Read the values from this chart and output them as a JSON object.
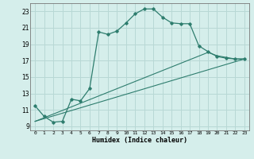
{
  "xlabel": "Humidex (Indice chaleur)",
  "ylabel": "",
  "xlim": [
    -0.5,
    23.5
  ],
  "ylim": [
    8.5,
    24.0
  ],
  "yticks": [
    9,
    11,
    13,
    15,
    17,
    19,
    21,
    23
  ],
  "xticks": [
    0,
    1,
    2,
    3,
    4,
    5,
    6,
    7,
    8,
    9,
    10,
    11,
    12,
    13,
    14,
    15,
    16,
    17,
    18,
    19,
    20,
    21,
    22,
    23
  ],
  "bg_color": "#d5eeeb",
  "grid_color": "#b8d8d5",
  "line_color": "#2e7d6e",
  "line1_x": [
    0,
    1,
    2,
    3,
    4,
    5,
    6,
    7,
    8,
    9,
    10,
    11,
    12,
    13,
    14,
    15,
    16,
    17,
    18,
    19,
    20,
    21,
    22,
    23
  ],
  "line1_y": [
    11.5,
    10.2,
    9.5,
    9.6,
    12.3,
    12.1,
    13.6,
    20.5,
    20.2,
    20.6,
    21.6,
    22.7,
    23.3,
    23.3,
    22.3,
    21.6,
    21.5,
    21.5,
    18.8,
    18.1,
    17.5,
    17.3,
    17.2,
    17.2
  ],
  "line2_x": [
    0,
    23
  ],
  "line2_y": [
    9.6,
    17.2
  ],
  "line3_x": [
    0,
    19,
    20,
    21,
    22,
    23
  ],
  "line3_y": [
    9.6,
    18.0,
    17.6,
    17.4,
    17.2,
    17.2
  ]
}
